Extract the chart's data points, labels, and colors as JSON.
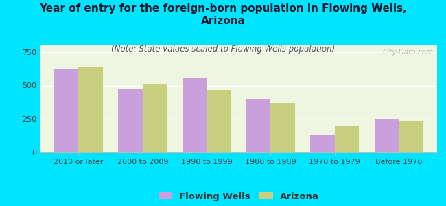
{
  "title": "Year of entry for the foreign-born population in Flowing Wells,\nArizona",
  "subtitle": "(Note: State values scaled to Flowing Wells population)",
  "categories": [
    "2010 or later",
    "2000 to 2009",
    "1990 to 1999",
    "1980 to 1989",
    "1970 to 1979",
    "Before 1970"
  ],
  "flowing_wells": [
    620,
    475,
    560,
    400,
    135,
    245
  ],
  "arizona": [
    640,
    515,
    465,
    370,
    200,
    235
  ],
  "flowing_wells_color": "#c9a0dc",
  "arizona_color": "#c8d080",
  "background_color": "#00e5ff",
  "plot_bg_color": "#eef5e0",
  "ylim": [
    0,
    800
  ],
  "yticks": [
    0,
    250,
    500,
    750
  ],
  "bar_width": 0.38,
  "title_fontsize": 11,
  "subtitle_fontsize": 8.5,
  "tick_fontsize": 8,
  "legend_fontsize": 9.5,
  "watermark": "City-Data.com"
}
